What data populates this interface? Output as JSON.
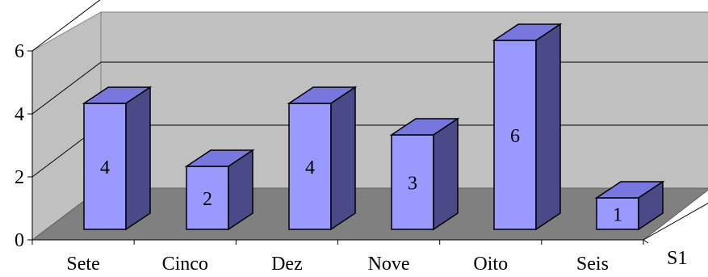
{
  "chart_data": {
    "type": "bar",
    "categories": [
      "Sete",
      "Cinco",
      "Dez",
      "Nove",
      "Oito",
      "Seis"
    ],
    "series": [
      {
        "values": [
          4,
          2,
          4,
          3,
          6,
          1
        ]
      }
    ],
    "series_axis_label": "S1",
    "yticks": [
      0,
      2,
      4,
      6
    ],
    "ylim": [
      0,
      6.5
    ],
    "data_labels": true,
    "grid": true,
    "three_d": true,
    "colors": {
      "bar_front": "#9999ff",
      "bar_top": "#7777dd",
      "bar_side": "#4a4a88",
      "wall": "#c0c0c0",
      "floor": "#808080",
      "gridline": "#000000"
    }
  }
}
